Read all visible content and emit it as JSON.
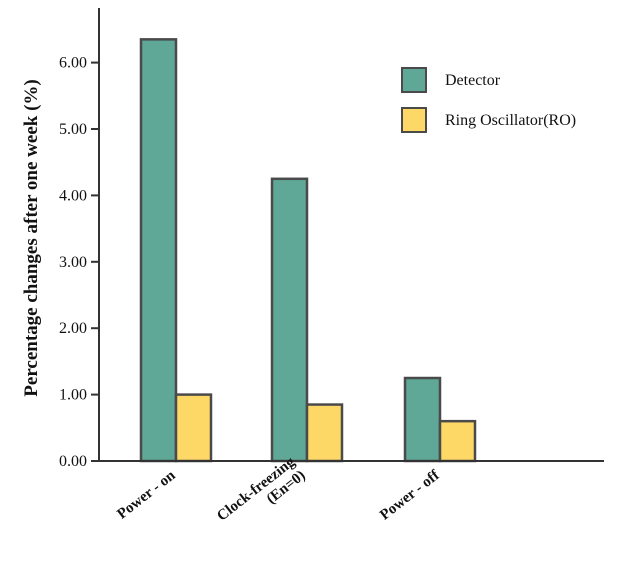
{
  "chart_data": {
    "type": "bar",
    "categories": [
      "Power - on",
      "Clock-freezing\n(En=0)",
      "Power - off"
    ],
    "series": [
      {
        "name": "Detector",
        "values": [
          6.35,
          4.25,
          1.25
        ]
      },
      {
        "name": "Ring Oscillator(RO)",
        "values": [
          1.0,
          0.85,
          0.6
        ]
      }
    ],
    "ylabel": "Percentage changes after one week (%)",
    "xlabel": "",
    "ylim": [
      0,
      6.6
    ],
    "yticks": [
      "0.00",
      "1.00",
      "2.00",
      "3.00",
      "4.00",
      "5.00",
      "6.00"
    ],
    "colors": {
      "Detector": "#5fa898",
      "Ring Oscillator(RO)": "#fdd866",
      "bar_edge": "#4a4a4a",
      "axis": "#333333"
    },
    "legend_position": "top-right",
    "grid": false
  }
}
